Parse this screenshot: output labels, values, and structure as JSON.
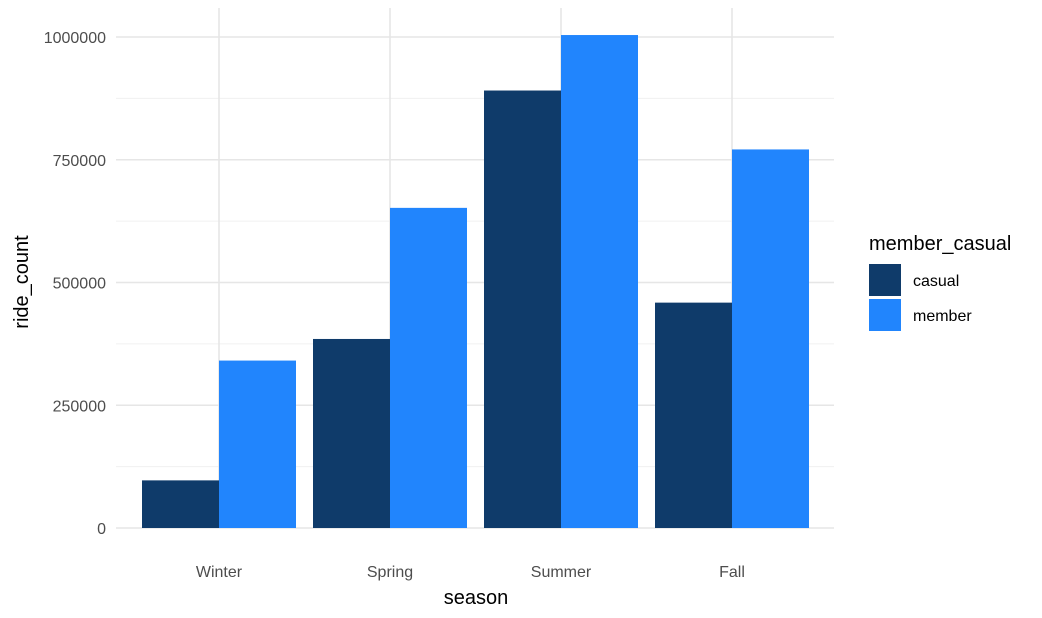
{
  "chart_data": {
    "type": "bar",
    "xlabel": "season",
    "ylabel": "ride_count",
    "categories": [
      "Winter",
      "Spring",
      "Summer",
      "Fall"
    ],
    "series": [
      {
        "name": "casual",
        "color": "#0f3b6a",
        "values": [
          97000,
          385000,
          891000,
          459000
        ]
      },
      {
        "name": "member",
        "color": "#2185fd",
        "values": [
          341000,
          652000,
          1004000,
          771000
        ]
      }
    ],
    "ylim": [
      0,
      1050000
    ],
    "yticks": [
      0,
      250000,
      500000,
      750000,
      1000000
    ],
    "ytick_labels": [
      "0",
      "250000",
      "500000",
      "750000",
      "1000000"
    ],
    "grid": true,
    "legend": {
      "title": "member_casual",
      "position": "right"
    }
  }
}
